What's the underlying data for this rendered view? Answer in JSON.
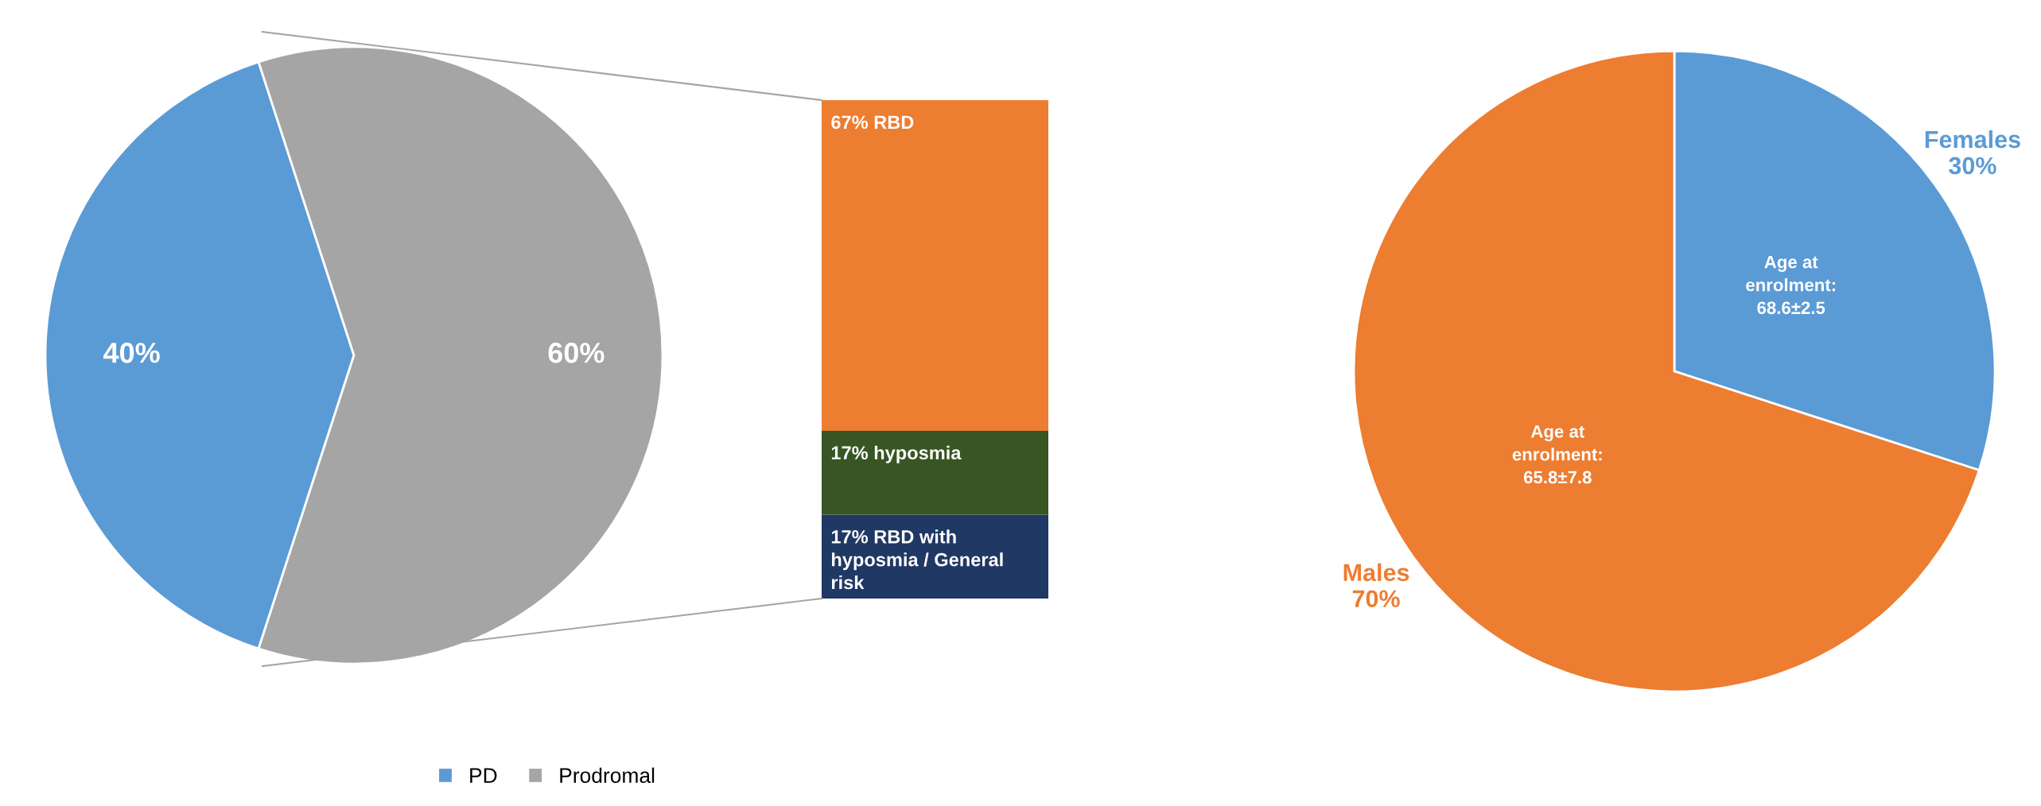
{
  "chart_data": [
    {
      "type": "pie",
      "categories": [
        "PD",
        "Prodromal"
      ],
      "values": [
        40,
        60
      ],
      "colors": [
        "#5b9bd5",
        "#a5a5a5"
      ],
      "value_labels": [
        "40%",
        "60%"
      ],
      "legend": "bottom"
    },
    {
      "type": "bar",
      "categories": [
        null
      ],
      "stacked": true,
      "ylim": [
        0,
        101
      ],
      "tick_labels": false,
      "series": [
        {
          "color": "#203864",
          "values": [
            17
          ],
          "value_labels": [
            "17% RBD with\nhyposmia / General\nrisk"
          ]
        },
        {
          "color": "#375623",
          "values": [
            17
          ],
          "value_labels": [
            "17% hyposmia"
          ]
        },
        {
          "color": "#ed7d31",
          "values": [
            67
          ],
          "value_labels": [
            "67% RBD"
          ]
        }
      ]
    },
    {
      "type": "pie",
      "categories": [
        "Females",
        "Males"
      ],
      "values": [
        30,
        70
      ],
      "colors": [
        "#5b9bd5",
        "#ed7d31"
      ],
      "value_labels": [
        "30%",
        "70%"
      ],
      "annotations": [
        "Age at\nenrolment:\n68.6±2.5",
        "Age at\nenrolment:\n65.8±7.8"
      ]
    }
  ]
}
